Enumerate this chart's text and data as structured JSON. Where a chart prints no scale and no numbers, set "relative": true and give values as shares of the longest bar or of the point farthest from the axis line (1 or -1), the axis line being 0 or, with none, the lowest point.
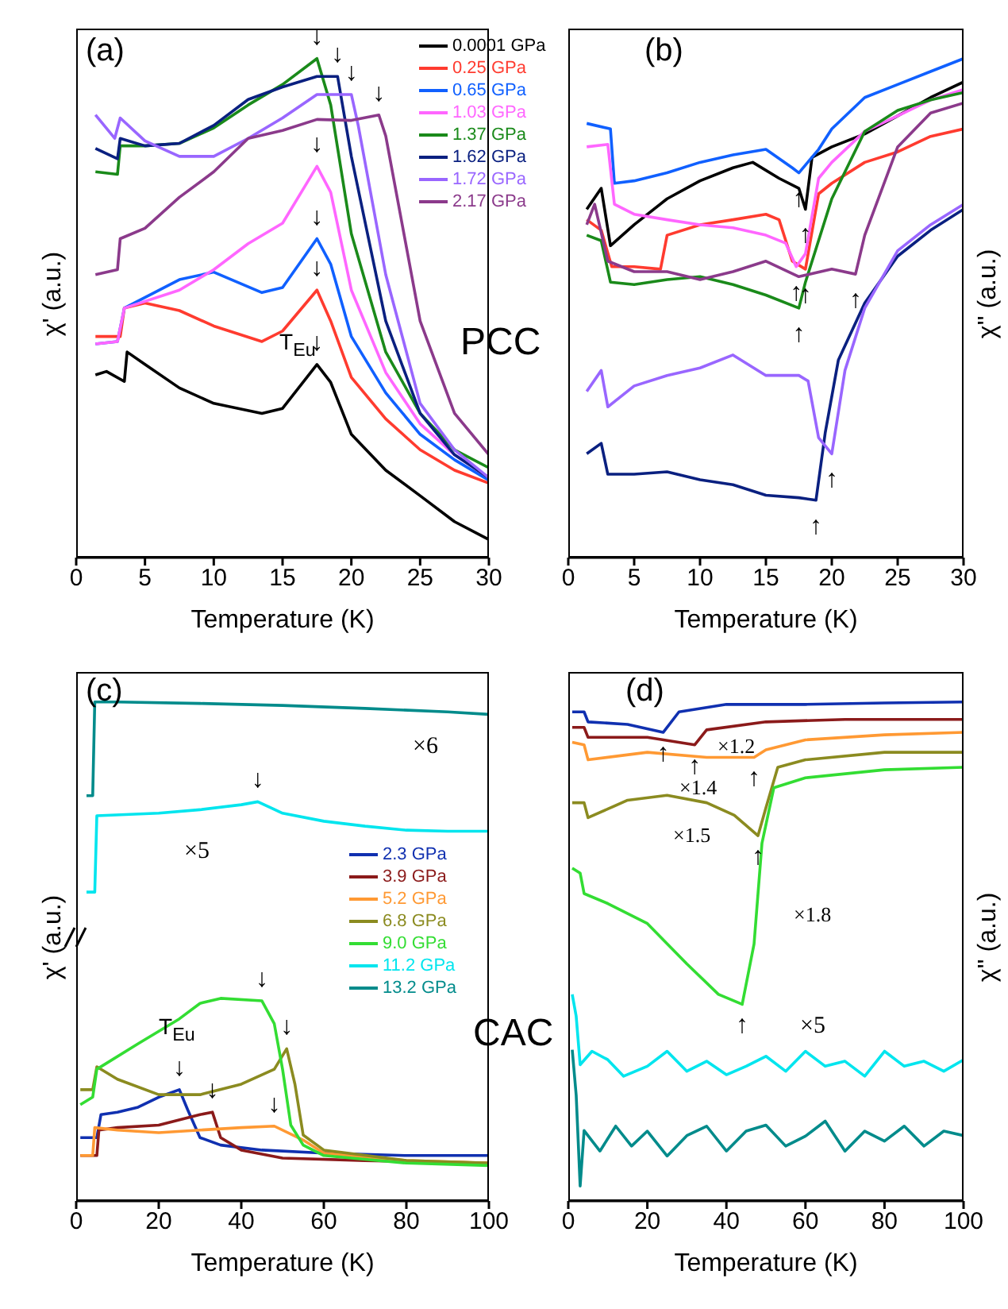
{
  "chart_data": [
    {
      "type": "line",
      "relative": true,
      "xlabel": "Temperature (K)",
      "ylabel": "χ' (a.u.)",
      "xlim": [
        0,
        30
      ],
      "xticks": [
        0,
        5,
        10,
        15,
        20,
        25,
        30
      ],
      "legend": "top right",
      "series": [
        {
          "name": "0.0001 GPa",
          "color": "#000000",
          "x": [
            1.4,
            2.2,
            3.5,
            3.7,
            5,
            7.5,
            10,
            13.5,
            15,
            17.5,
            18.5,
            20,
            22.5,
            25,
            27.5,
            30
          ],
          "values": [
            0.366,
            0.373,
            0.353,
            0.412,
            0.387,
            0.34,
            0.309,
            0.289,
            0.299,
            0.387,
            0.351,
            0.247,
            0.175,
            0.124,
            0.072,
            0.036
          ]
        },
        {
          "name": "0.25 GPa",
          "color": "#ff3b2f",
          "x": [
            1.4,
            3.2,
            3.5,
            5,
            7.5,
            10,
            13.5,
            15,
            17.5,
            18.5,
            20,
            22.5,
            25,
            27.5,
            30
          ],
          "values": [
            0.443,
            0.443,
            0.5,
            0.51,
            0.495,
            0.464,
            0.433,
            0.454,
            0.536,
            0.474,
            0.361,
            0.278,
            0.216,
            0.175,
            0.149
          ]
        },
        {
          "name": "0.65 GPa",
          "color": "#1060ff",
          "x": [
            1.4,
            3,
            3.5,
            7.5,
            10,
            13.5,
            15,
            17.5,
            18.5,
            20,
            22.5,
            25,
            27.5,
            30
          ],
          "values": [
            0.428,
            0.433,
            0.5,
            0.557,
            0.572,
            0.531,
            0.541,
            0.639,
            0.588,
            0.443,
            0.33,
            0.247,
            0.196,
            0.155
          ]
        },
        {
          "name": "1.03 GPa",
          "color": "#ff66ff",
          "x": [
            1.4,
            3,
            3.5,
            7.5,
            10,
            12.5,
            15,
            17.5,
            18.5,
            20,
            22.5,
            25,
            27.5,
            30
          ],
          "values": [
            0.428,
            0.433,
            0.5,
            0.536,
            0.577,
            0.629,
            0.67,
            0.784,
            0.732,
            0.536,
            0.371,
            0.268,
            0.206,
            0.16
          ]
        },
        {
          "name": "1.37 GPa",
          "color": "#1a8a1a",
          "x": [
            1.4,
            3,
            3.2,
            5,
            7.5,
            10,
            12.5,
            15,
            17.5,
            18.5,
            20,
            22.5,
            25,
            27.5,
            30
          ],
          "values": [
            0.773,
            0.768,
            0.825,
            0.825,
            0.83,
            0.861,
            0.907,
            0.948,
            1,
            0.907,
            0.649,
            0.412,
            0.289,
            0.216,
            0.18
          ]
        },
        {
          "name": "1.62 GPa",
          "color": "#0a2080",
          "x": [
            1.4,
            3,
            3.2,
            5,
            7.5,
            10,
            12.5,
            15,
            17.5,
            19,
            20,
            22.5,
            25,
            27.5,
            30
          ],
          "values": [
            0.82,
            0.799,
            0.84,
            0.825,
            0.83,
            0.866,
            0.918,
            0.943,
            0.964,
            0.964,
            0.804,
            0.474,
            0.289,
            0.206,
            0.16
          ]
        },
        {
          "name": "1.72 GPa",
          "color": "#9966ff",
          "x": [
            1.4,
            2.8,
            3.2,
            5,
            7.5,
            10,
            12.5,
            15,
            17.5,
            20,
            20.5,
            22.5,
            25,
            27.5,
            30
          ],
          "values": [
            0.887,
            0.84,
            0.881,
            0.835,
            0.804,
            0.804,
            0.84,
            0.881,
            0.928,
            0.928,
            0.866,
            0.567,
            0.309,
            0.216,
            0.16
          ]
        },
        {
          "name": "2.17 GPa",
          "color": "#8b3a8b",
          "x": [
            1.4,
            3,
            3.2,
            5,
            7.5,
            10,
            12.5,
            15,
            17.5,
            20,
            22,
            22.5,
            25,
            27.5,
            30
          ],
          "values": [
            0.567,
            0.577,
            0.639,
            0.66,
            0.722,
            0.773,
            0.84,
            0.856,
            0.878,
            0.876,
            0.887,
            0.845,
            0.474,
            0.289,
            0.206
          ]
        }
      ],
      "annotations": [
        "(a)",
        "PCC",
        "T$_{Eu}$",
        {
          "text": "↓",
          "x": 17.5,
          "y": 0.387
        },
        {
          "text": "↓",
          "x": 17.5,
          "y": 0.536
        },
        {
          "text": "↓",
          "x": 17.5,
          "y": 0.639
        },
        {
          "text": "↓",
          "x": 17.5,
          "y": 0.784
        },
        {
          "text": "↓",
          "x": 17.5,
          "y": 1
        },
        {
          "text": "↓",
          "x": 19,
          "y": 0.964
        },
        {
          "text": "↓",
          "x": 20,
          "y": 0.928
        },
        {
          "text": "↓",
          "x": 22,
          "y": 0.887
        }
      ]
    },
    {
      "type": "line",
      "relative": true,
      "xlabel": "Temperature (K)",
      "ylabel": "χ'' (a.u.)",
      "xlim": [
        0,
        30
      ],
      "xticks": [
        0,
        5,
        10,
        15,
        20,
        25,
        30
      ],
      "series": [
        {
          "color": "#000000",
          "x": [
            1.4,
            2.5,
            3.2,
            5,
            7.5,
            10,
            12.5,
            14,
            16,
            17.5,
            18,
            18.5,
            20,
            22.5,
            25,
            27.5,
            30
          ],
          "values": [
            0.698,
            0.74,
            0.625,
            0.667,
            0.719,
            0.755,
            0.781,
            0.792,
            0.76,
            0.74,
            0.698,
            0.802,
            0.823,
            0.849,
            0.885,
            0.922,
            0.953
          ]
        },
        {
          "color": "#ff3b2f",
          "x": [
            1.4,
            2.5,
            3.3,
            5,
            7,
            7.5,
            10,
            12.5,
            15,
            16,
            17,
            18,
            19,
            20,
            22.5,
            25,
            27.5,
            30
          ],
          "values": [
            0.677,
            0.656,
            0.583,
            0.583,
            0.578,
            0.646,
            0.667,
            0.677,
            0.688,
            0.677,
            0.594,
            0.578,
            0.729,
            0.75,
            0.792,
            0.813,
            0.844,
            0.859
          ]
        },
        {
          "color": "#1060ff",
          "x": [
            1.4,
            3.2,
            3.5,
            5,
            7.5,
            10,
            12.5,
            15,
            17,
            17.5,
            19,
            20,
            22.5,
            25,
            27.5,
            30
          ],
          "values": [
            0.87,
            0.859,
            0.75,
            0.755,
            0.771,
            0.792,
            0.807,
            0.818,
            0.781,
            0.771,
            0.818,
            0.859,
            0.922,
            0.948,
            0.974,
            1
          ]
        },
        {
          "color": "#ff66ff",
          "x": [
            1.4,
            3,
            3.5,
            5,
            7.5,
            10,
            12.5,
            15,
            16.5,
            17.3,
            18,
            19,
            20,
            22.5,
            25,
            27.5,
            30
          ],
          "values": [
            0.823,
            0.828,
            0.708,
            0.688,
            0.677,
            0.667,
            0.661,
            0.646,
            0.63,
            0.583,
            0.609,
            0.76,
            0.792,
            0.854,
            0.885,
            0.917,
            0.938
          ]
        },
        {
          "color": "#1a8a1a",
          "x": [
            1.4,
            2.5,
            3.2,
            5,
            7.5,
            10,
            12.5,
            15,
            17.5,
            18,
            20,
            22.5,
            25,
            27.5,
            30
          ],
          "values": [
            0.646,
            0.635,
            0.552,
            0.547,
            0.557,
            0.563,
            0.547,
            0.526,
            0.5,
            0.552,
            0.719,
            0.854,
            0.896,
            0.917,
            0.932
          ]
        },
        {
          "color": "#0a2080",
          "x": [
            1.4,
            2.5,
            3,
            5,
            7.5,
            10,
            12.5,
            15,
            17.5,
            18.8,
            19.5,
            20.5,
            22.5,
            25,
            27.5,
            30
          ],
          "values": [
            0.208,
            0.229,
            0.167,
            0.167,
            0.172,
            0.156,
            0.146,
            0.125,
            0.12,
            0.115,
            0.25,
            0.396,
            0.51,
            0.604,
            0.656,
            0.698
          ]
        },
        {
          "color": "#9966ff",
          "x": [
            1.4,
            2.5,
            3,
            5,
            7.5,
            10,
            12.5,
            15,
            17.5,
            18.2,
            19,
            20,
            21,
            22.5,
            25,
            27.5,
            30
          ],
          "values": [
            0.333,
            0.375,
            0.302,
            0.344,
            0.365,
            0.38,
            0.406,
            0.365,
            0.365,
            0.354,
            0.24,
            0.208,
            0.375,
            0.5,
            0.615,
            0.667,
            0.708
          ]
        },
        {
          "color": "#8b3a8b",
          "x": [
            1.4,
            2,
            3,
            5,
            7.5,
            10,
            12.5,
            15,
            17.5,
            20,
            21.8,
            22.5,
            25,
            27.5,
            30
          ],
          "values": [
            0.667,
            0.708,
            0.594,
            0.573,
            0.573,
            0.557,
            0.573,
            0.594,
            0.563,
            0.578,
            0.568,
            0.646,
            0.823,
            0.891,
            0.911
          ]
        }
      ],
      "annotations": [
        "(b)",
        {
          "text": "↑",
          "x": 18,
          "y": 0.698
        },
        {
          "text": "↑",
          "x": 17.5,
          "y": 0.771
        },
        {
          "text": "↑",
          "x": 17.3,
          "y": 0.583
        },
        {
          "text": "↑",
          "x": 18,
          "y": 0.578
        },
        {
          "text": "↑",
          "x": 17.5,
          "y": 0.5
        },
        {
          "text": "↑",
          "x": 21.8,
          "y": 0.568
        },
        {
          "text": "↑",
          "x": 18.8,
          "y": 0.115
        },
        {
          "text": "↑",
          "x": 20,
          "y": 0.208
        }
      ]
    },
    {
      "type": "line",
      "relative": true,
      "xlabel": "Temperature (K)",
      "ylabel": "χ' (a.u.)",
      "xlim": [
        0,
        100
      ],
      "xticks": [
        0,
        20,
        40,
        60,
        80,
        100
      ],
      "legend": "right",
      "series": [
        {
          "name": "2.3 GPa",
          "color": "#1030b0",
          "x": [
            1,
            5,
            6,
            10,
            15,
            20,
            25,
            27,
            30,
            35,
            45,
            60,
            80,
            100
          ],
          "values": [
            0.127,
            0.127,
            0.173,
            0.178,
            0.188,
            0.208,
            0.223,
            0.183,
            0.127,
            0.112,
            0.102,
            0.096,
            0.091,
            0.091
          ]
        },
        {
          "name": "3.9 GPa",
          "color": "#8b1a1a",
          "x": [
            1,
            5,
            5.5,
            10,
            20,
            30,
            33,
            35,
            40,
            50,
            70,
            100
          ],
          "values": [
            0.091,
            0.091,
            0.142,
            0.147,
            0.152,
            0.173,
            0.178,
            0.127,
            0.102,
            0.086,
            0.081,
            0.076
          ]
        },
        {
          "name": "5.2 GPa",
          "color": "#ff9933",
          "x": [
            1,
            4,
            4.5,
            10,
            20,
            30,
            40,
            48,
            55,
            60,
            80,
            100
          ],
          "values": [
            0.091,
            0.091,
            0.147,
            0.142,
            0.137,
            0.142,
            0.147,
            0.15,
            0.122,
            0.096,
            0.081,
            0.076
          ]
        },
        {
          "name": "6.8 GPa",
          "color": "#8b8b20",
          "x": [
            1,
            4,
            5,
            10,
            20,
            30,
            40,
            48,
            51,
            53,
            55,
            60,
            80,
            100
          ],
          "values": [
            0.223,
            0.223,
            0.269,
            0.244,
            0.213,
            0.213,
            0.234,
            0.264,
            0.305,
            0.234,
            0.132,
            0.102,
            0.081,
            0.076
          ]
        },
        {
          "name": "9.0 GPa",
          "color": "#33dd33",
          "x": [
            1,
            4,
            5,
            15,
            25,
            30,
            35,
            45,
            48,
            50,
            52,
            55,
            60,
            80,
            100
          ],
          "values": [
            0.193,
            0.208,
            0.264,
            0.315,
            0.365,
            0.396,
            0.406,
            0.401,
            0.355,
            0.264,
            0.152,
            0.112,
            0.091,
            0.076,
            0.071
          ]
        },
        {
          "name": "11.2 GPa",
          "color": "#00e5ee",
          "x": [
            2.5,
            4.5,
            5,
            20,
            30,
            40,
            44,
            50,
            60,
            70,
            80,
            90,
            100
          ],
          "values": [
            0.619,
            0.619,
            0.772,
            0.777,
            0.784,
            0.794,
            0.8,
            0.777,
            0.761,
            0.751,
            0.743,
            0.741,
            0.741
          ]
        },
        {
          "name": "13.2 GPa",
          "color": "#008b8b",
          "x": [
            2.5,
            4,
            4.5,
            10,
            30,
            50,
            70,
            90,
            100
          ],
          "values": [
            0.812,
            0.812,
            1,
            1,
            0.997,
            0.993,
            0.987,
            0.98,
            0.975
          ]
        }
      ],
      "annotations": [
        "(c)",
        "CAC",
        "×6",
        "×5",
        "T$_{Eu}$",
        {
          "text": "↓",
          "x": 44,
          "y": 0.8
        },
        {
          "text": "↓",
          "x": 45,
          "y": 0.401
        },
        {
          "text": "↓",
          "x": 51,
          "y": 0.305
        },
        {
          "text": "↓",
          "x": 25,
          "y": 0.223
        },
        {
          "text": "↓",
          "x": 33,
          "y": 0.178
        },
        {
          "text": "↓",
          "x": 48,
          "y": 0.15
        }
      ]
    },
    {
      "type": "line",
      "relative": true,
      "xlabel": "Temperature (K)",
      "ylabel": "χ'' (a.u.)",
      "xlim": [
        0,
        100
      ],
      "xticks": [
        0,
        20,
        40,
        60,
        80,
        100
      ],
      "series": [
        {
          "color": "#1030b0",
          "x": [
            1,
            4,
            5,
            15,
            24,
            28,
            40,
            60,
            80,
            100
          ],
          "values": [
            0.98,
            0.98,
            0.96,
            0.955,
            0.939,
            0.98,
            0.995,
            0.995,
            0.998,
            1
          ]
        },
        {
          "color": "#8b1a1a",
          "x": [
            1,
            4,
            5,
            20,
            32,
            35,
            50,
            70,
            100
          ],
          "values": [
            0.949,
            0.949,
            0.929,
            0.929,
            0.914,
            0.944,
            0.96,
            0.965,
            0.965
          ]
        },
        {
          "color": "#ff9933",
          "x": [
            1,
            4,
            5,
            20,
            35,
            47,
            50,
            60,
            80,
            100
          ],
          "values": [
            0.919,
            0.914,
            0.884,
            0.899,
            0.889,
            0.889,
            0.904,
            0.924,
            0.934,
            0.939
          ]
        },
        {
          "color": "#8b8b20",
          "x": [
            1,
            4,
            5,
            15,
            25,
            35,
            42,
            48,
            50,
            53,
            60,
            80,
            100
          ],
          "values": [
            0.798,
            0.798,
            0.768,
            0.803,
            0.813,
            0.798,
            0.773,
            0.732,
            0.788,
            0.869,
            0.884,
            0.899,
            0.899
          ]
        },
        {
          "color": "#33dd33",
          "x": [
            1,
            3,
            4,
            10,
            20,
            30,
            38,
            44,
            47,
            49,
            52,
            60,
            80,
            100
          ],
          "values": [
            0.667,
            0.657,
            0.616,
            0.596,
            0.556,
            0.475,
            0.414,
            0.394,
            0.515,
            0.717,
            0.828,
            0.848,
            0.864,
            0.869
          ]
        },
        {
          "color": "#00e5ee",
          "x": [
            1,
            2,
            3,
            6,
            10,
            14,
            20,
            25,
            30,
            35,
            40,
            45,
            50,
            55,
            60,
            65,
            70,
            75,
            80,
            85,
            90,
            95,
            100
          ],
          "values": [
            0.414,
            0.37,
            0.273,
            0.3,
            0.283,
            0.25,
            0.27,
            0.3,
            0.26,
            0.28,
            0.253,
            0.27,
            0.29,
            0.26,
            0.3,
            0.27,
            0.28,
            0.25,
            0.3,
            0.27,
            0.28,
            0.26,
            0.283
          ]
        },
        {
          "color": "#008b8b",
          "x": [
            1,
            2,
            3,
            4,
            8,
            12,
            16,
            20,
            25,
            30,
            35,
            40,
            45,
            50,
            55,
            60,
            65,
            70,
            75,
            80,
            85,
            90,
            95,
            100
          ],
          "values": [
            0.303,
            0.212,
            0.03,
            0.141,
            0.1,
            0.15,
            0.11,
            0.14,
            0.09,
            0.131,
            0.15,
            0.1,
            0.14,
            0.152,
            0.11,
            0.13,
            0.16,
            0.1,
            0.14,
            0.12,
            0.15,
            0.11,
            0.14,
            0.131
          ]
        }
      ],
      "annotations": [
        "(d)",
        "×1.2",
        "×1.4",
        "×1.5",
        "×1.8",
        "×5",
        {
          "text": "↑",
          "x": 24,
          "y": 0.939
        },
        {
          "text": "↑",
          "x": 32,
          "y": 0.914
        },
        {
          "text": "↑",
          "x": 47,
          "y": 0.889
        },
        {
          "text": "↑",
          "x": 48,
          "y": 0.732
        },
        {
          "text": "↑",
          "x": 44,
          "y": 0.394
        }
      ]
    }
  ]
}
